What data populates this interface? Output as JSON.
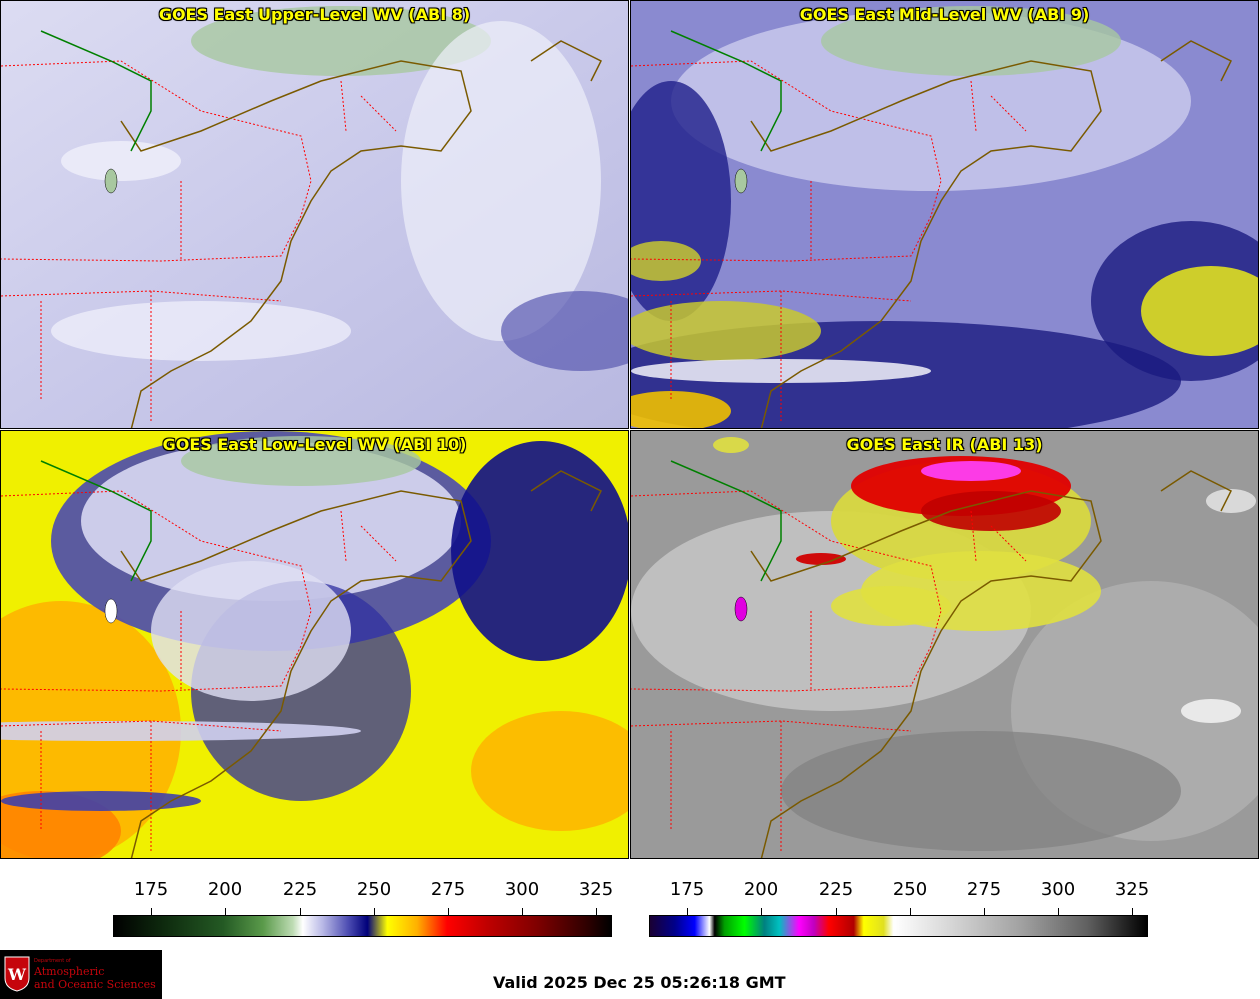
{
  "panels": [
    {
      "title": "GOES East Upper-Level WV (ABI 8)",
      "colormap": "wv"
    },
    {
      "title": "GOES East Mid-Level WV (ABI 9)",
      "colormap": "wv"
    },
    {
      "title": "GOES East Low-Level WV (ABI 10)",
      "colormap": "wv"
    },
    {
      "title": "GOES East IR (ABI 13)",
      "colormap": "ir"
    }
  ],
  "colorbars": [
    {
      "ticks": [
        "175",
        "200",
        "225",
        "250",
        "275",
        "300",
        "325"
      ],
      "colormap": "wv"
    },
    {
      "ticks": [
        "175",
        "200",
        "225",
        "250",
        "275",
        "300",
        "325"
      ],
      "colormap": "ir"
    }
  ],
  "footer": {
    "valid_text": "Valid 2025 Dec 25 05:26:18 GMT"
  },
  "logo": {
    "department": "Department of",
    "name_line1": "Atmospheric",
    "name_line2": "and Oceanic Sciences",
    "shield_letter": "W"
  },
  "colors": {
    "state_borders": "#ff0000",
    "coastline": "#7a5a00",
    "title_text": "#ffff00",
    "logo_red": "#c5050c"
  }
}
